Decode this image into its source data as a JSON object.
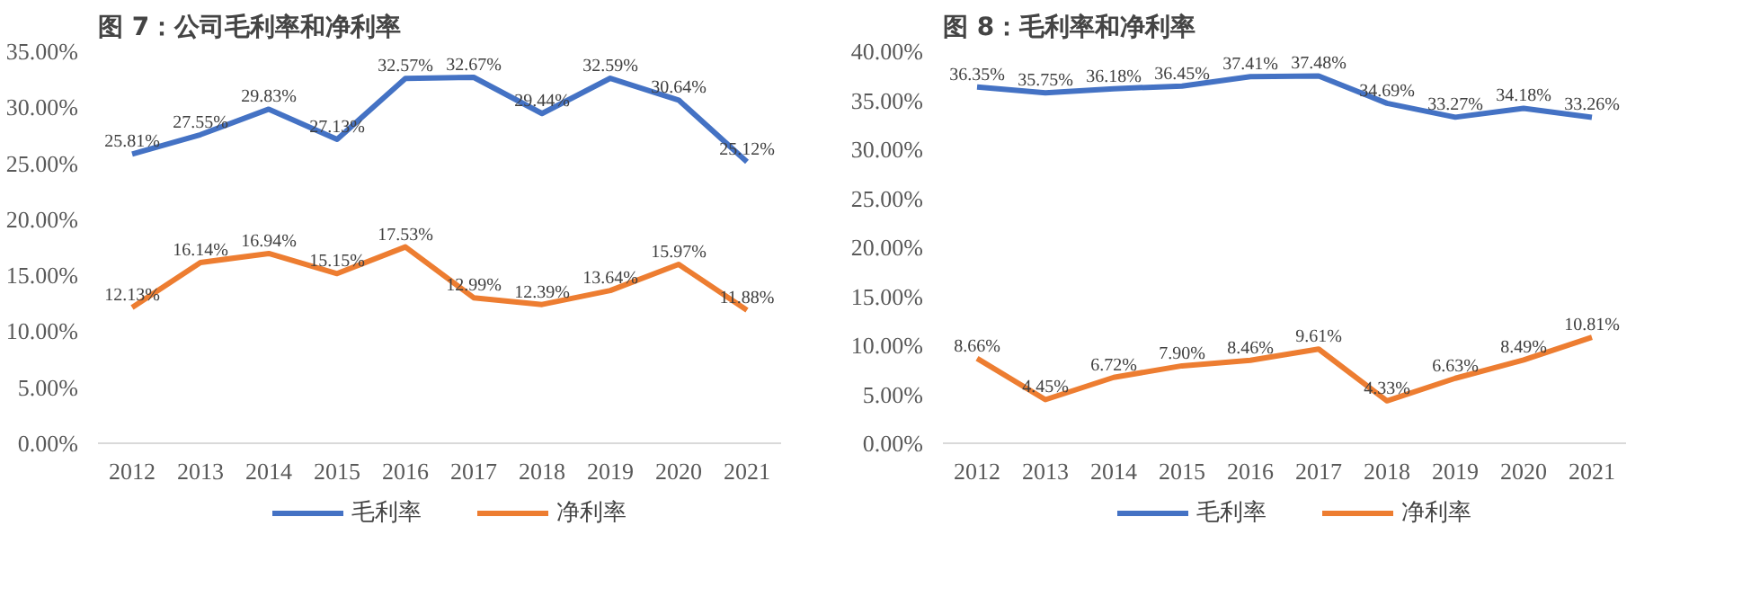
{
  "chart_data": [
    {
      "type": "line",
      "title": "图 7：公司毛利率和净利率",
      "categories": [
        "2012",
        "2013",
        "2014",
        "2015",
        "2016",
        "2017",
        "2018",
        "2019",
        "2020",
        "2021"
      ],
      "ylim": [
        0,
        35
      ],
      "yticks": [
        {
          "value": 0,
          "label": "0.00%"
        },
        {
          "value": 5,
          "label": "5.00%"
        },
        {
          "value": 10,
          "label": "10.00%"
        },
        {
          "value": 15,
          "label": "15.00%"
        },
        {
          "value": 20,
          "label": "20.00%"
        },
        {
          "value": 25,
          "label": "25.00%"
        },
        {
          "value": 30,
          "label": "30.00%"
        },
        {
          "value": 35,
          "label": "35.00%"
        }
      ],
      "grid": false,
      "legend": "bottom",
      "marker": "none",
      "line_style": "solid",
      "series": [
        {
          "name": "毛利率",
          "color": "#4472c4",
          "values": [
            25.81,
            27.55,
            29.83,
            27.13,
            32.57,
            32.67,
            29.44,
            32.59,
            30.64,
            25.12
          ],
          "value_labels": [
            "25.81%",
            "27.55%",
            "29.83%",
            "27.13%",
            "32.57%",
            "32.67%",
            "29.44%",
            "32.59%",
            "30.64%",
            "25.12%"
          ]
        },
        {
          "name": "净利率",
          "color": "#ed7d31",
          "values": [
            12.13,
            16.14,
            16.94,
            15.15,
            17.53,
            12.99,
            12.39,
            13.64,
            15.97,
            11.88
          ],
          "value_labels": [
            "12.13%",
            "16.14%",
            "16.94%",
            "15.15%",
            "17.53%",
            "12.99%",
            "12.39%",
            "13.64%",
            "15.97%",
            "11.88%"
          ]
        }
      ]
    },
    {
      "type": "line",
      "title": "图 8：毛利率和净利率",
      "categories": [
        "2012",
        "2013",
        "2014",
        "2015",
        "2016",
        "2017",
        "2018",
        "2019",
        "2020",
        "2021"
      ],
      "ylim": [
        0,
        40
      ],
      "yticks": [
        {
          "value": 0,
          "label": "0.00%"
        },
        {
          "value": 5,
          "label": "5.00%"
        },
        {
          "value": 10,
          "label": "10.00%"
        },
        {
          "value": 15,
          "label": "15.00%"
        },
        {
          "value": 20,
          "label": "20.00%"
        },
        {
          "value": 25,
          "label": "25.00%"
        },
        {
          "value": 30,
          "label": "30.00%"
        },
        {
          "value": 35,
          "label": "35.00%"
        },
        {
          "value": 40,
          "label": "40.00%"
        }
      ],
      "grid": false,
      "legend": "bottom",
      "marker": "none",
      "line_style": "solid",
      "series": [
        {
          "name": "毛利率",
          "color": "#4472c4",
          "values": [
            36.35,
            35.75,
            36.18,
            36.45,
            37.41,
            37.48,
            34.69,
            33.27,
            34.18,
            33.26
          ],
          "value_labels": [
            "36.35%",
            "35.75%",
            "36.18%",
            "36.45%",
            "37.41%",
            "37.48%",
            "34.69%",
            "33.27%",
            "34.18%",
            "33.26%"
          ]
        },
        {
          "name": "净利率",
          "color": "#ed7d31",
          "values": [
            8.66,
            4.45,
            6.72,
            7.9,
            8.46,
            9.61,
            4.33,
            6.63,
            8.49,
            10.81
          ],
          "value_labels": [
            "8.66%",
            "4.45%",
            "6.72%",
            "7.90%",
            "8.46%",
            "9.61%",
            "4.33%",
            "6.63%",
            "8.49%",
            "10.81%"
          ]
        }
      ]
    }
  ]
}
